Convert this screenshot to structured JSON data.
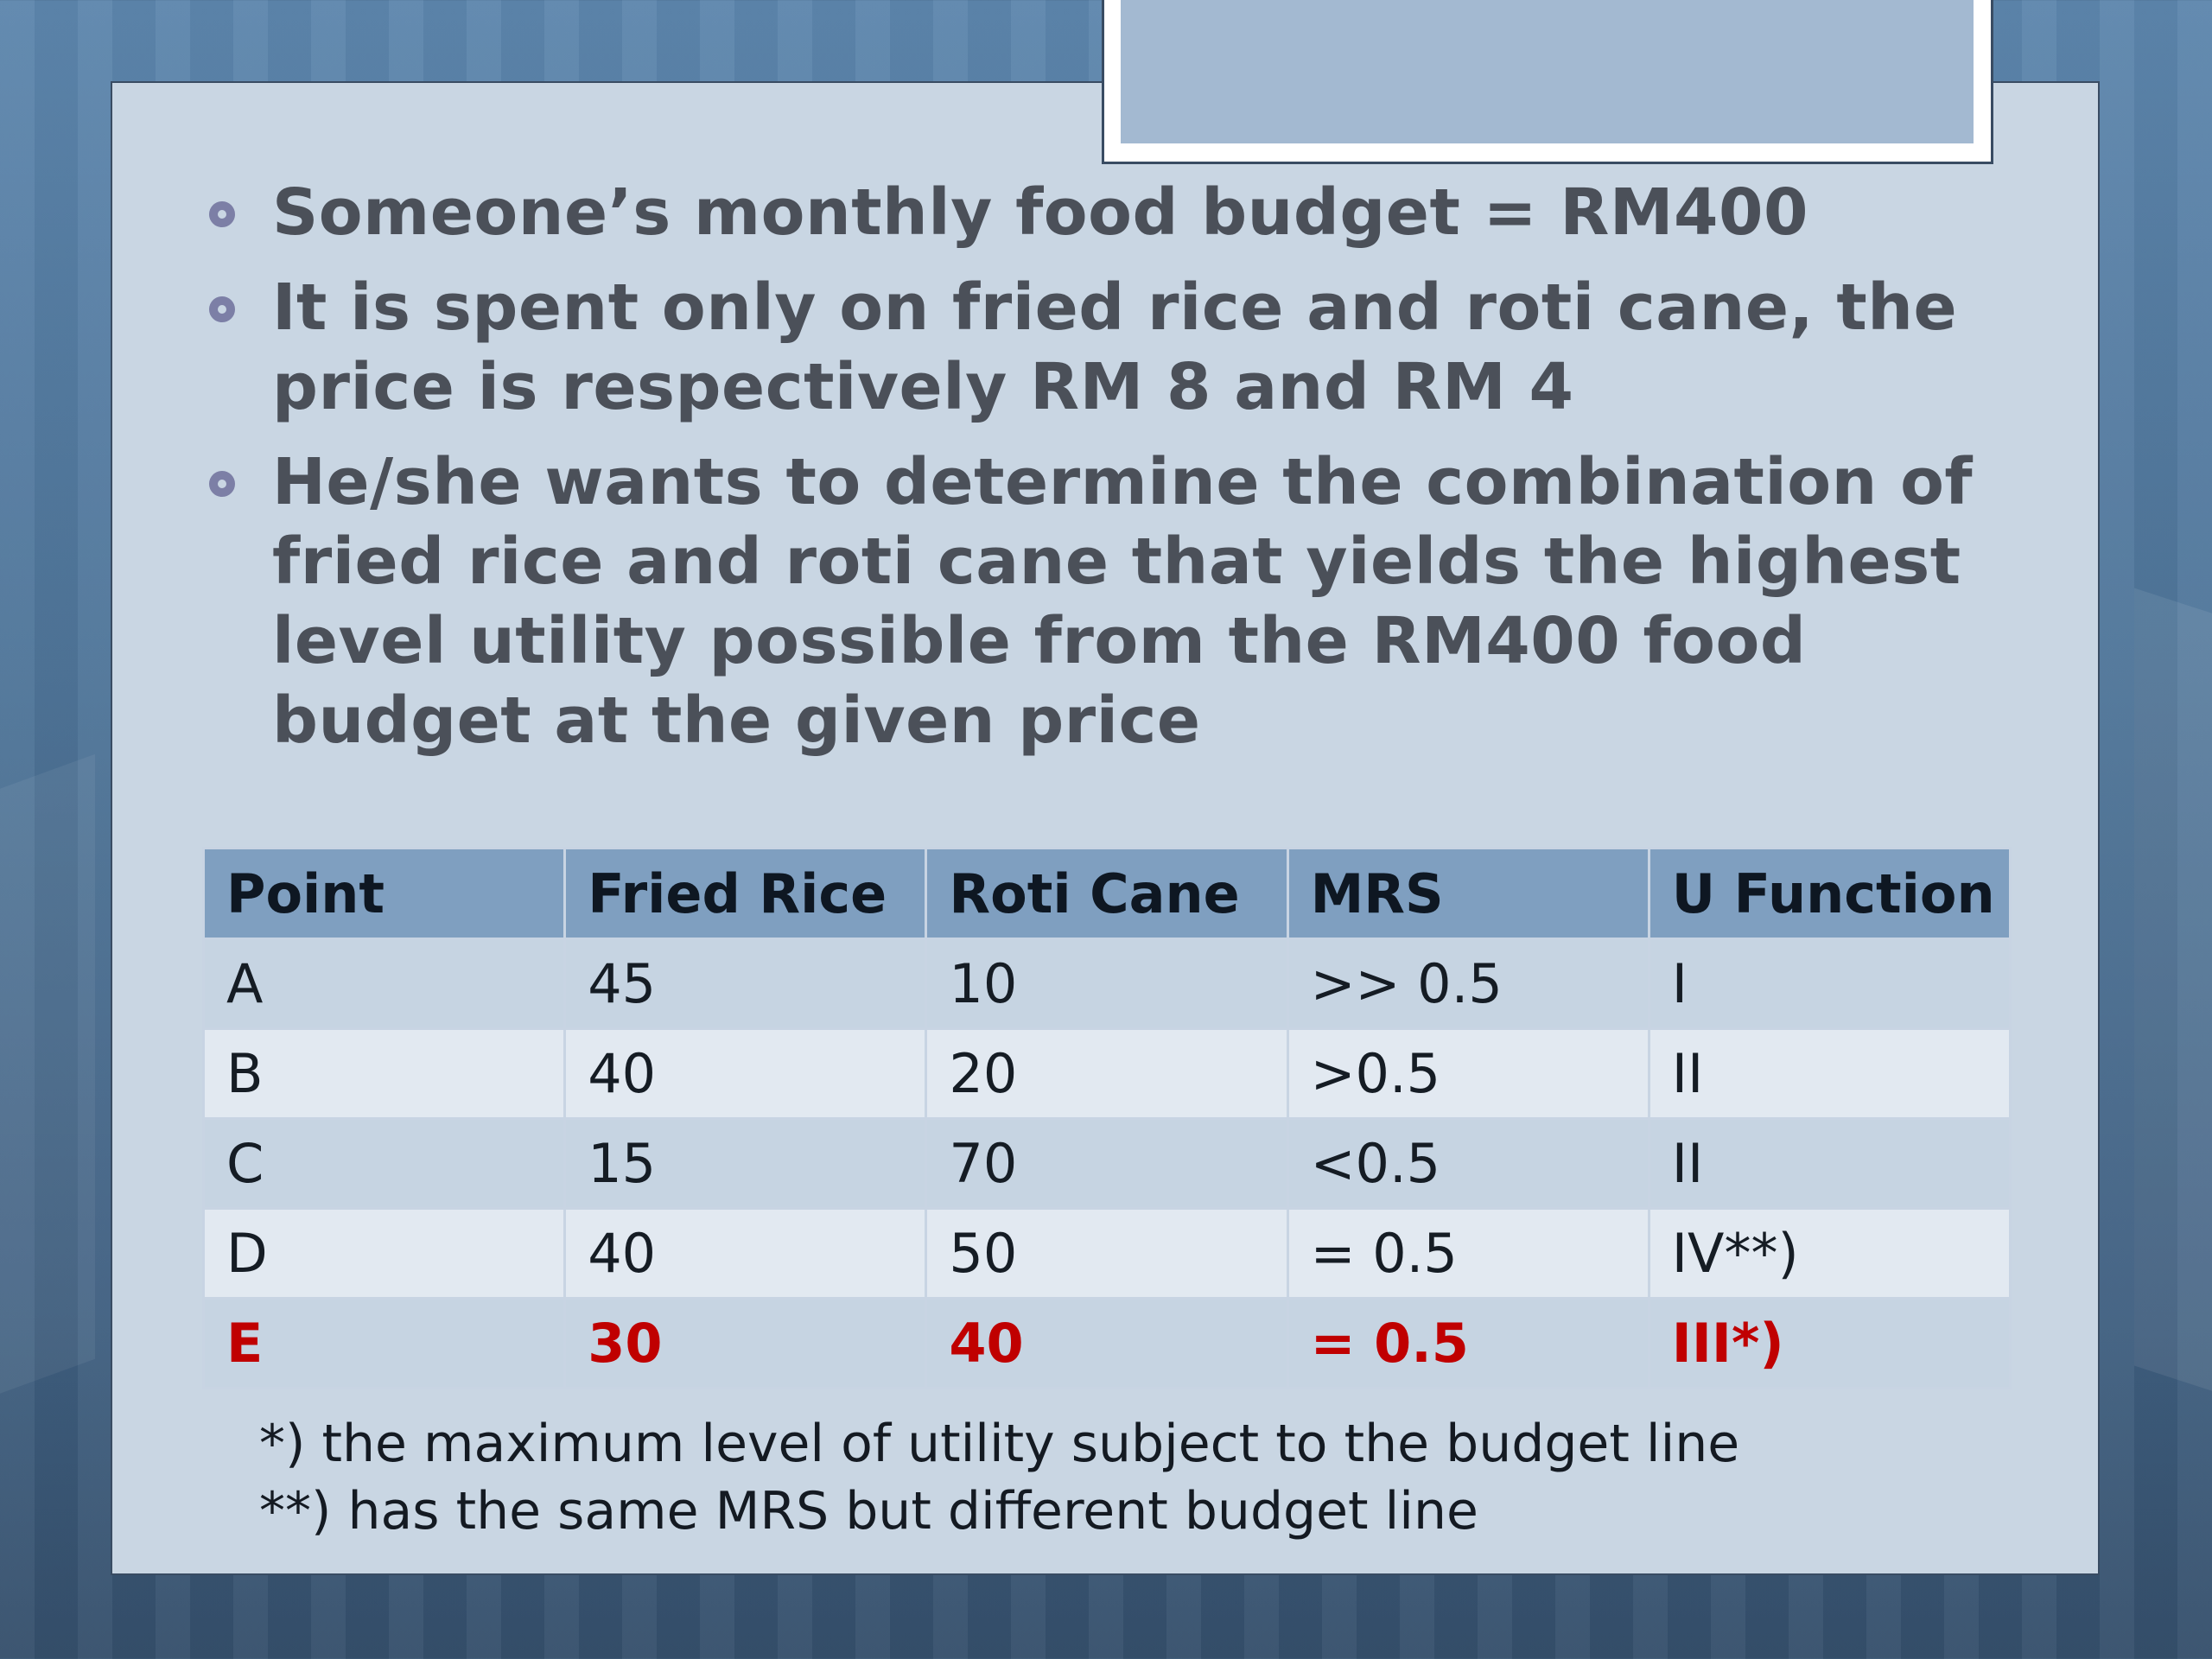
{
  "bullets": [
    "Someone’s monthly food budget = RM400",
    "It is spent only on fried rice and roti cane, the price is respectively RM 8 and RM 4",
    "He/she wants to determine the combination of fried rice and roti cane that yields the highest level utility possible from the RM400 food budget at the given price"
  ],
  "table": {
    "headers": [
      "Point",
      "Fried Rice",
      "Roti Cane",
      "MRS",
      "U Function"
    ],
    "rows": [
      [
        "A",
        "45",
        "10",
        ">> 0.5",
        "I"
      ],
      [
        "B",
        "40",
        "20",
        ">0.5",
        "II"
      ],
      [
        "C",
        "15",
        "70",
        "<0.5",
        "II"
      ],
      [
        "D",
        "40",
        "50",
        "= 0.5",
        "IV**)"
      ],
      [
        "E",
        "30",
        "40",
        "= 0.5",
        "III*)"
      ]
    ]
  },
  "notes": [
    "*) the maximum level of utility subject to the budget line",
    "**) has the same MRS but different budget line"
  ],
  "colors": {
    "highlight": "#c00000",
    "header_bg": "#7f9fc0",
    "panel_bg": "#c9d6e3"
  }
}
